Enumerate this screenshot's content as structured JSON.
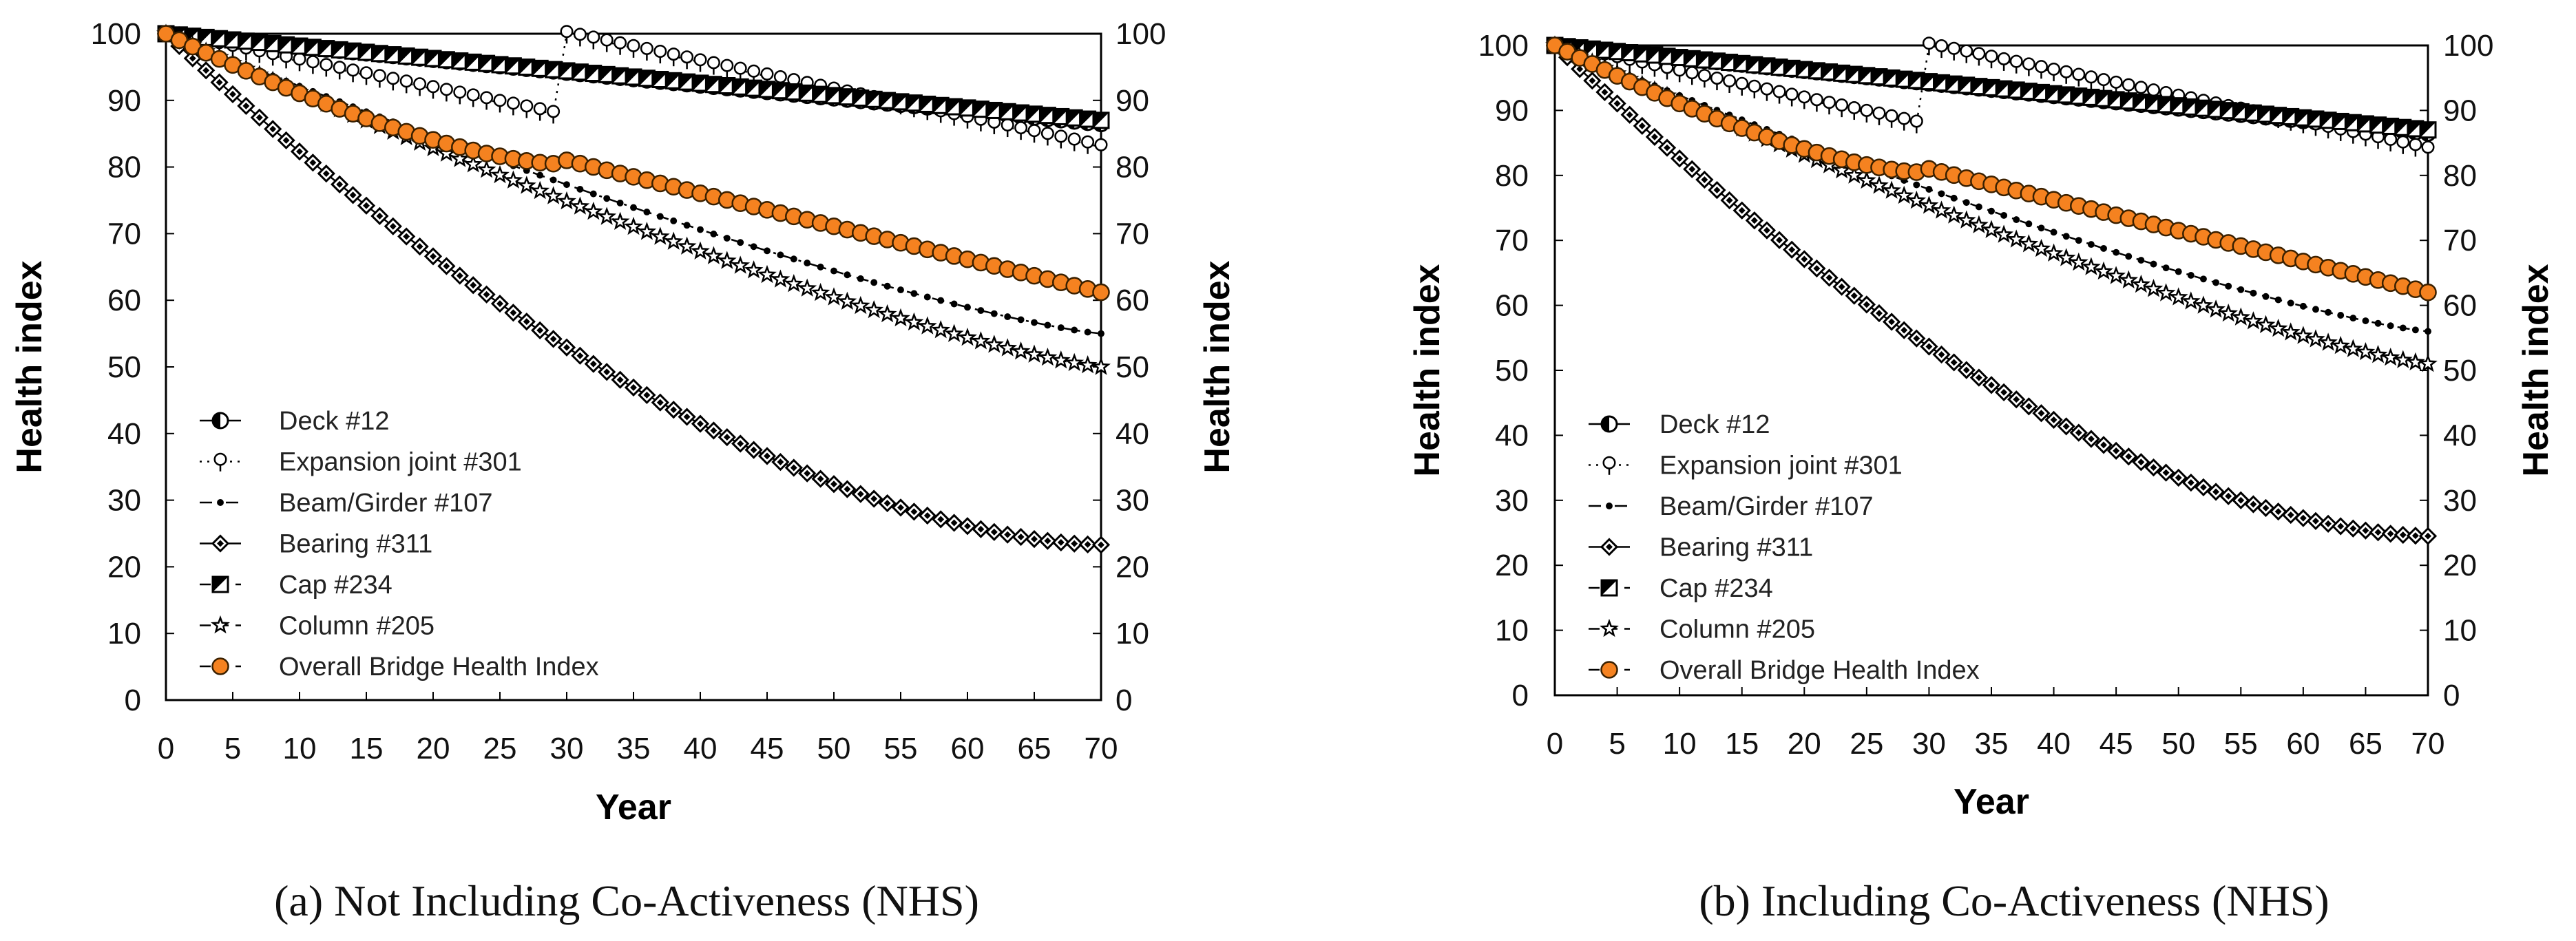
{
  "figure": {
    "panels": [
      {
        "caption": "(a) Not Including Co-Activeness (NHS)"
      },
      {
        "caption": "(b) Including Co-Activeness (NHS)"
      }
    ]
  },
  "chart_data": [
    {
      "type": "line",
      "xlabel": "Year",
      "ylabel_left": "Health index",
      "ylabel_right": "Health index",
      "xlim": [
        0,
        70
      ],
      "ylim": [
        0,
        100
      ],
      "xticks": [
        "0",
        "5",
        "10",
        "15",
        "20",
        "25",
        "30",
        "35",
        "40",
        "45",
        "50",
        "55",
        "60",
        "65",
        "70"
      ],
      "yticks": [
        "0",
        "10",
        "20",
        "30",
        "40",
        "50",
        "60",
        "70",
        "80",
        "90",
        "100"
      ],
      "grid": false,
      "legend_position": "bottom-left",
      "series": [
        {
          "name": "Deck #12",
          "marker": "half-circle",
          "line": "solid",
          "end_value": 86.5,
          "reset_year": null
        },
        {
          "name": "Expansion joint #301",
          "marker": "pin",
          "line": "dotted",
          "value_before_reset": 88,
          "reset_year": 30,
          "end_value": 83
        },
        {
          "name": "Beam/Girder #107",
          "marker": "dot",
          "line": "dash-dot",
          "end_value": 55,
          "reset_year": null
        },
        {
          "name": "Bearing #311",
          "marker": "diamond",
          "line": "solid",
          "end_value": 23.3,
          "reset_year": null
        },
        {
          "name": "Cap #234",
          "marker": "half-square",
          "line": "dashed",
          "end_value": 87,
          "reset_year": null
        },
        {
          "name": "Column #205",
          "marker": "star",
          "line": "dashed",
          "end_value": 50,
          "reset_year": null
        },
        {
          "name": "Overall Bridge Health Index",
          "marker": "orange-circle",
          "line": "dashed",
          "value_at_29": 80.5,
          "value_at_30": 81,
          "end_value": 61.2
        }
      ]
    },
    {
      "type": "line",
      "xlabel": "Year",
      "ylabel_left": "Health index",
      "ylabel_right": "Health index",
      "xlim": [
        0,
        70
      ],
      "ylim": [
        0,
        100
      ],
      "xticks": [
        "0",
        "5",
        "10",
        "15",
        "20",
        "25",
        "30",
        "35",
        "40",
        "45",
        "50",
        "55",
        "60",
        "65",
        "70"
      ],
      "yticks": [
        "0",
        "10",
        "20",
        "30",
        "40",
        "50",
        "60",
        "70",
        "80",
        "90",
        "100"
      ],
      "grid": false,
      "legend_position": "bottom-left",
      "series": [
        {
          "name": "Deck #12",
          "marker": "half-circle",
          "line": "solid",
          "end_value": 86.5,
          "reset_year": null
        },
        {
          "name": "Expansion joint #301",
          "marker": "pin",
          "line": "dotted",
          "value_before_reset": 88,
          "reset_year": 30,
          "end_value": 84
        },
        {
          "name": "Beam/Girder #107",
          "marker": "dot",
          "line": "dash-dot",
          "end_value": 56,
          "reset_year": null
        },
        {
          "name": "Bearing #311",
          "marker": "diamond",
          "line": "solid",
          "end_value": 24.5,
          "reset_year": null
        },
        {
          "name": "Cap #234",
          "marker": "half-square",
          "line": "dashed",
          "end_value": 87,
          "reset_year": null
        },
        {
          "name": "Column #205",
          "marker": "star",
          "line": "dashed",
          "end_value": 51,
          "reset_year": null
        },
        {
          "name": "Overall Bridge Health Index",
          "marker": "orange-circle",
          "line": "dashed",
          "value_at_29": 80.5,
          "value_at_30": 81,
          "end_value": 62
        }
      ]
    }
  ]
}
